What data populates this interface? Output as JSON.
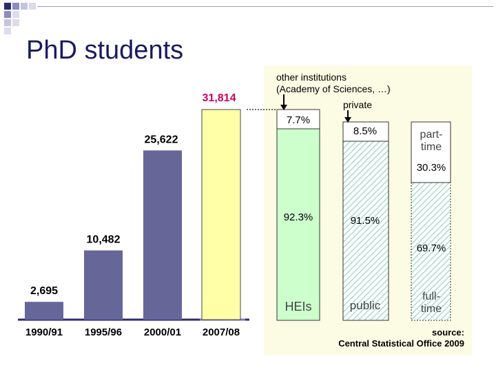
{
  "title": "PhD students",
  "colors": {
    "bar": "#666699",
    "highlight_bar": "#ffffa8",
    "green": "#ccffcc",
    "hatch": "#a8dcd0",
    "value_label_highlight": "#cc0066",
    "panel": "#fcfbe4"
  },
  "chart_data": [
    {
      "type": "bar",
      "categories": [
        "1990/91",
        "1995/96",
        "2000/01",
        "2007/08"
      ],
      "values": [
        2695,
        10482,
        25622,
        31814
      ],
      "value_labels": [
        "2,695",
        "10,482",
        "25,622",
        "31,814"
      ],
      "title": "",
      "xlabel": "",
      "ylabel": "",
      "highlight_index": 3
    },
    {
      "type": "bar",
      "stacked": true,
      "categories": [
        "HEIs",
        "public",
        "full-time"
      ],
      "series": [
        {
          "values": [
            92.3,
            91.5,
            69.7
          ],
          "labels": [
            "92.3%",
            "91.5%",
            "69.7%"
          ]
        },
        {
          "values": [
            7.7,
            8.5,
            30.3
          ],
          "labels": [
            "7.7%",
            "8.5%",
            "30.3%"
          ]
        }
      ],
      "segment_names": {
        "col1": [
          "HEIs",
          "other institutions (Academy of Sciences, …)"
        ],
        "col2": [
          "public",
          "private"
        ],
        "col3": [
          "full-time",
          "part-time"
        ]
      },
      "annotations": {
        "other_line1": "other institutions",
        "other_line2": "(Academy of Sciences, …)",
        "private": "private",
        "hei": "HEIs",
        "public": "public",
        "fulltime_line1": "full-",
        "fulltime_line2": "time",
        "parttime_line1": "part-",
        "parttime_line2": "time"
      },
      "source_line1": "source:",
      "source_line2": "Central Statistical Office 2009"
    }
  ]
}
